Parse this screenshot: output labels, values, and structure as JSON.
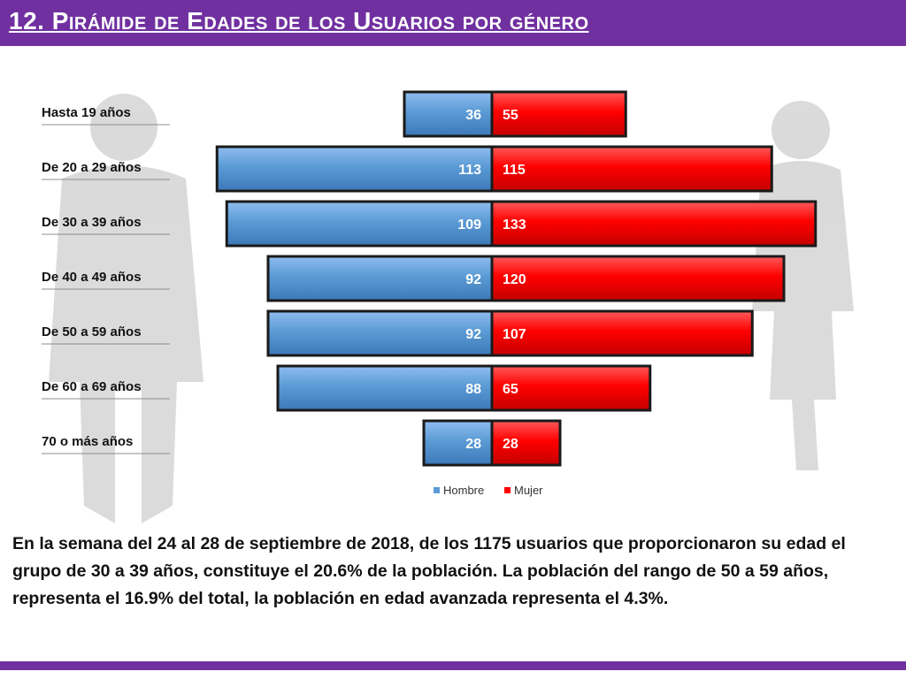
{
  "header": {
    "title": "12. Pirámide de Edades de los Usuarios por género"
  },
  "caption": "En la semana del 24 al 28 de septiembre de 2018, de los 1175 usuarios  que proporcionaron su edad el grupo de 30 a 39 años, constituye el 20.6% de la población. La población del rango de 50 a 59 años, representa el 16.9% del total, la población en edad avanzada representa el 4.3%.",
  "colors": {
    "brand": "#7030a0",
    "hombre": "#5b9bd5",
    "mujer": "#ff0000"
  },
  "chart_data": {
    "type": "bar",
    "orientation": "horizontal-diverging",
    "title": "",
    "categories": [
      "Hasta 19 años",
      "De 20 a 29 años",
      "De 30 a 39 años",
      "De 40 a 49 años",
      "De 50 a 59 años",
      "De 60 a 69 años",
      "70 o más años"
    ],
    "series": [
      {
        "name": "Hombre",
        "values": [
          36,
          113,
          109,
          92,
          92,
          88,
          28
        ]
      },
      {
        "name": "Mujer",
        "values": [
          55,
          115,
          133,
          120,
          107,
          65,
          28
        ]
      }
    ],
    "legend": "bottom-center"
  }
}
